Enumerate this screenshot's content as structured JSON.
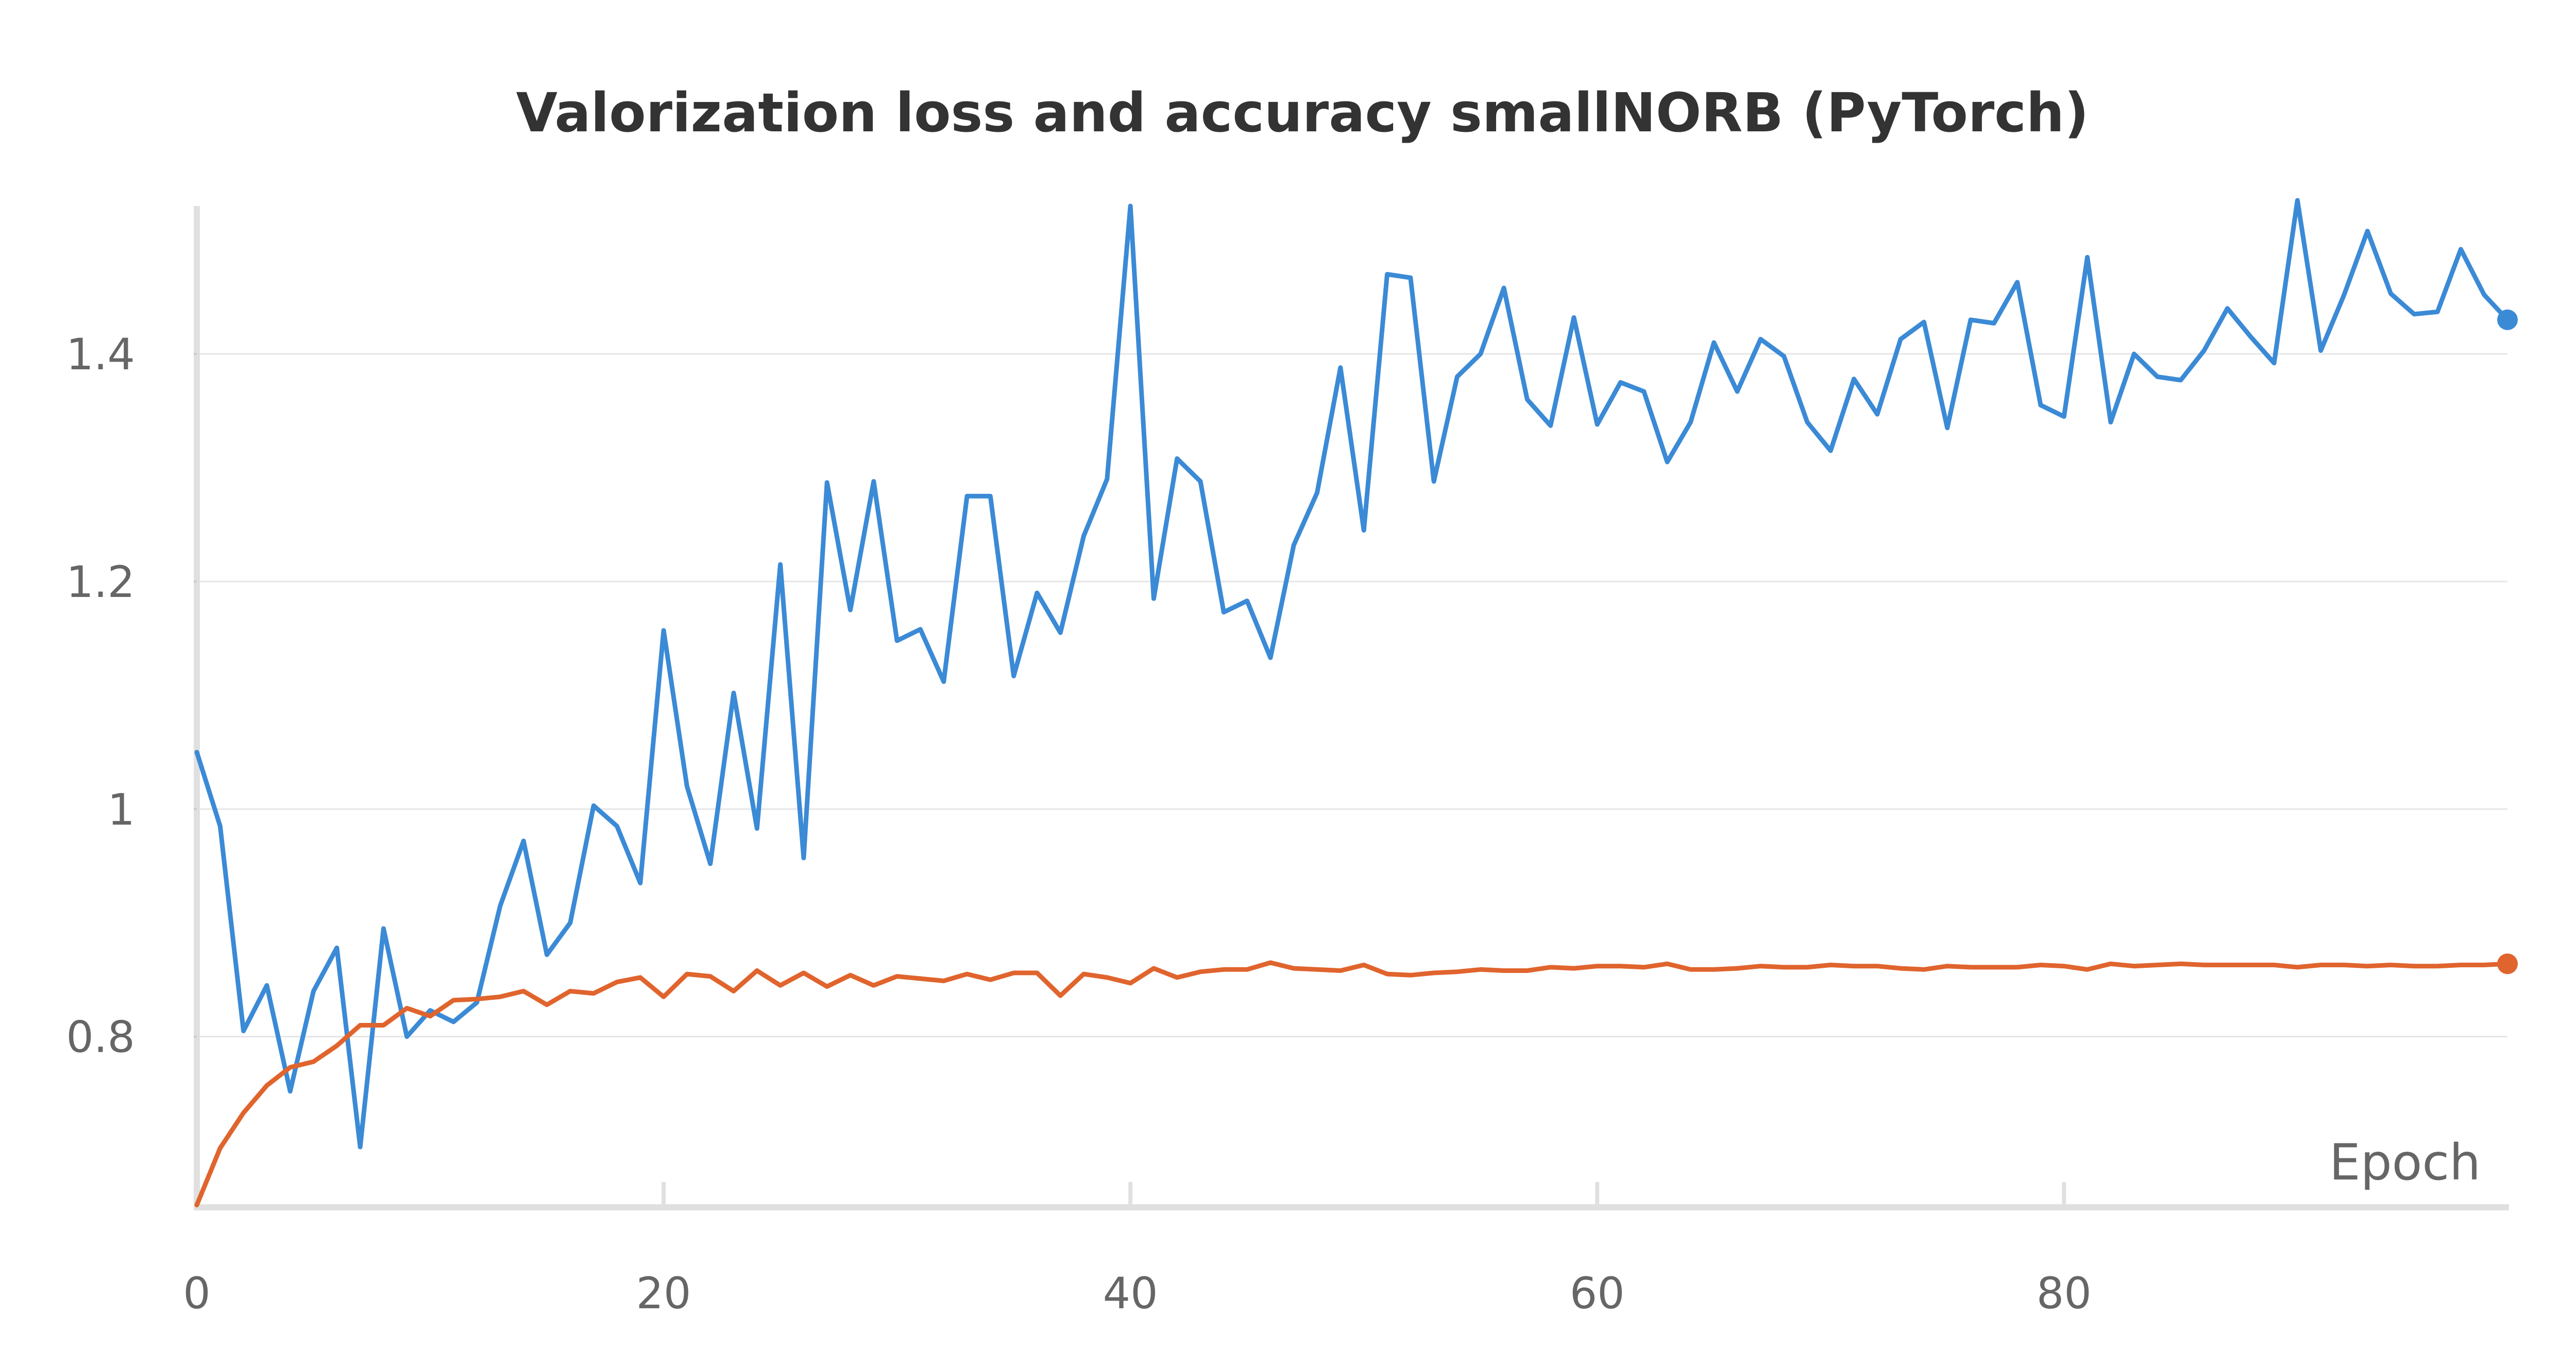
{
  "chart_data": {
    "type": "line",
    "title": "Valorization loss and accuracy smallNORB (PyTorch)",
    "xlabel": "Epoch",
    "ylabel": "",
    "xlim": [
      0,
      99
    ],
    "ylim": [
      0.65,
      1.53
    ],
    "x_ticks": [
      "0",
      "20",
      "40",
      "60",
      "80"
    ],
    "y_ticks": [
      "0.8",
      "1",
      "1.2",
      "1.4"
    ],
    "grid": "horizontal",
    "legend": "none",
    "series": [
      {
        "color": "#3b8ad6",
        "values": [
          1.05,
          0.985,
          0.805,
          0.845,
          0.752,
          0.84,
          0.878,
          0.703,
          0.895,
          0.8,
          0.823,
          0.813,
          0.83,
          0.915,
          0.972,
          0.872,
          0.9,
          1.003,
          0.985,
          0.935,
          1.157,
          1.02,
          0.952,
          1.102,
          0.983,
          1.215,
          0.957,
          1.287,
          1.175,
          1.288,
          1.148,
          1.158,
          1.112,
          1.275,
          1.275,
          1.117,
          1.19,
          1.155,
          1.24,
          1.29,
          1.53,
          1.185,
          1.308,
          1.288,
          1.173,
          1.183,
          1.133,
          1.232,
          1.278,
          1.388,
          1.245,
          1.47,
          1.467,
          1.288,
          1.38,
          1.4,
          1.458,
          1.36,
          1.337,
          1.432,
          1.338,
          1.375,
          1.367,
          1.305,
          1.34,
          1.41,
          1.367,
          1.413,
          1.398,
          1.34,
          1.315,
          1.378,
          1.347,
          1.413,
          1.428,
          1.335,
          1.43,
          1.427,
          1.463,
          1.355,
          1.345,
          1.485,
          1.34,
          1.4,
          1.38,
          1.377,
          1.403,
          1.44,
          1.415,
          1.392,
          1.535,
          1.403,
          1.452,
          1.508,
          1.453,
          1.435,
          1.437,
          1.492,
          1.452,
          1.43
        ]
      },
      {
        "color": "#e0642d",
        "values": [
          0.652,
          0.702,
          0.733,
          0.757,
          0.773,
          0.778,
          0.792,
          0.81,
          0.81,
          0.825,
          0.818,
          0.832,
          0.833,
          0.835,
          0.84,
          0.828,
          0.84,
          0.838,
          0.848,
          0.852,
          0.835,
          0.855,
          0.853,
          0.84,
          0.858,
          0.845,
          0.856,
          0.844,
          0.854,
          0.845,
          0.853,
          0.851,
          0.849,
          0.855,
          0.85,
          0.856,
          0.856,
          0.836,
          0.855,
          0.852,
          0.847,
          0.86,
          0.852,
          0.857,
          0.859,
          0.859,
          0.865,
          0.86,
          0.859,
          0.858,
          0.863,
          0.855,
          0.854,
          0.856,
          0.857,
          0.859,
          0.858,
          0.858,
          0.861,
          0.86,
          0.862,
          0.862,
          0.861,
          0.864,
          0.859,
          0.859,
          0.86,
          0.862,
          0.861,
          0.861,
          0.863,
          0.862,
          0.862,
          0.86,
          0.859,
          0.862,
          0.861,
          0.861,
          0.861,
          0.863,
          0.862,
          0.859,
          0.864,
          0.862,
          0.863,
          0.864,
          0.863,
          0.863,
          0.863,
          0.863,
          0.861,
          0.863,
          0.863,
          0.862,
          0.863,
          0.862,
          0.862,
          0.863,
          0.863,
          0.864
        ]
      }
    ]
  }
}
